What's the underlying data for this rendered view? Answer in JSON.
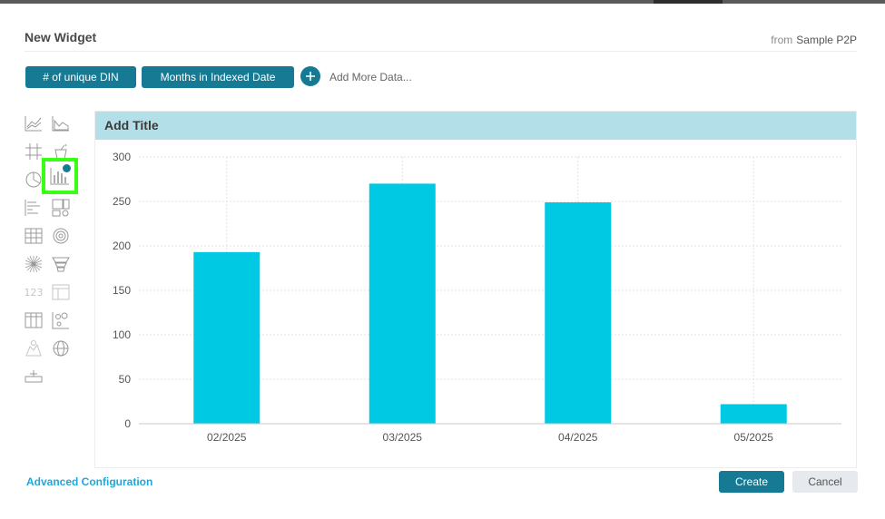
{
  "dialog": {
    "title": "New Widget",
    "from_label": "from",
    "source_name": "Sample P2P"
  },
  "data_pills": [
    {
      "label": "# of unique DIN"
    },
    {
      "label": "Months in Indexed Date"
    }
  ],
  "add_more_label": "Add More Data...",
  "chart_type_icons": [
    "line-chart-icon",
    "area-chart-icon",
    "grid-icon",
    "indicator-icon",
    "pie-chart-icon",
    "bar-chart-icon",
    "horizontal-bar-icon",
    "blox-icon",
    "pivot-table-icon",
    "polar-chart-icon",
    "sunburst-icon",
    "funnel-icon",
    "number-indicator-icon",
    "table-icon",
    "table-grid-icon",
    "scatter-chart-icon",
    "area-map-icon",
    "globe-icon",
    "plugin-icon"
  ],
  "number_icon_text": "123",
  "selected_chart_type": "bar-chart-icon",
  "panel": {
    "title": "Add Title"
  },
  "chart_data": {
    "type": "bar",
    "categories": [
      "02/2025",
      "03/2025",
      "04/2025",
      "05/2025"
    ],
    "values": [
      193,
      270,
      249,
      22
    ],
    "ylim": [
      0,
      300
    ],
    "yticks": [
      0,
      50,
      100,
      150,
      200,
      250,
      300
    ],
    "grid": true,
    "bar_color": "#00c9e3"
  },
  "footer": {
    "advanced_label": "Advanced Configuration",
    "create_label": "Create",
    "cancel_label": "Cancel"
  },
  "colors": {
    "accent": "#177a94",
    "link": "#1ea8d8",
    "panel_header": "#b3e0e8",
    "selection_highlight": "#39ff14"
  }
}
